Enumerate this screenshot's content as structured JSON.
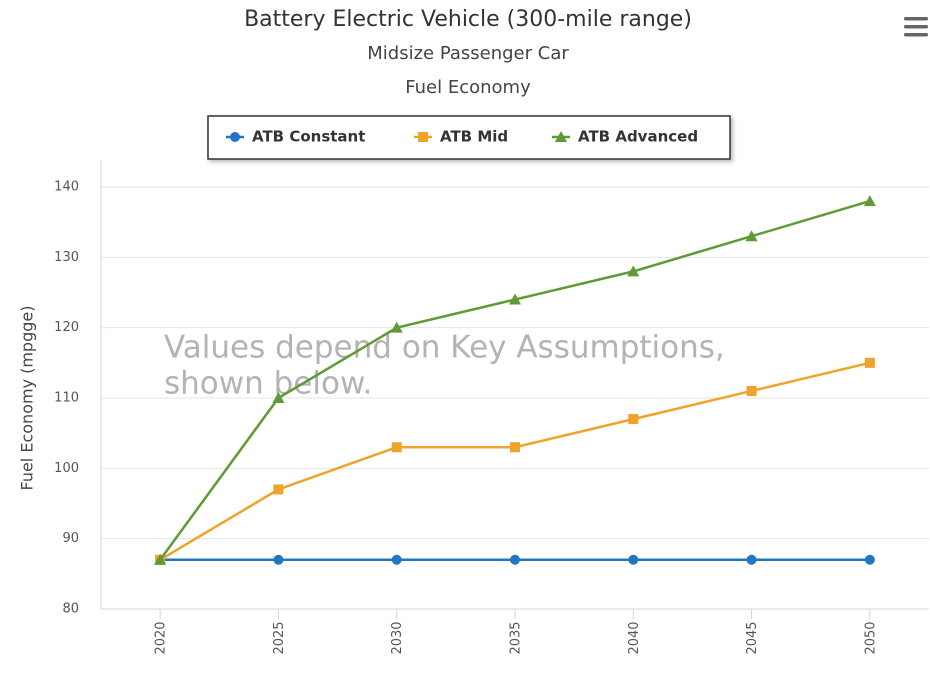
{
  "chart_data": {
    "type": "line",
    "title": "Battery Electric Vehicle (300-mile range)",
    "subtitle": [
      "Midsize Passenger Car",
      "Fuel Economy"
    ],
    "ylabel": "Fuel Economy (mpgge)",
    "annotation": [
      "Values depend on Key Assumptions,",
      "shown below."
    ],
    "categories": [
      "2020",
      "2025",
      "2030",
      "2035",
      "2040",
      "2045",
      "2050"
    ],
    "series": [
      {
        "name": "ATB Constant",
        "color": "#1f77c4",
        "marker": "circle",
        "values": [
          87,
          87,
          87,
          87,
          87,
          87,
          87
        ]
      },
      {
        "name": "ATB Mid",
        "color": "#f0a32a",
        "marker": "square",
        "values": [
          87,
          97,
          103,
          103,
          107,
          111,
          115
        ]
      },
      {
        "name": "ATB Advanced",
        "color": "#5f9a35",
        "marker": "triangle",
        "values": [
          87,
          110,
          120,
          124,
          128,
          133,
          138
        ]
      }
    ],
    "ylim": [
      80,
      140
    ],
    "yticks": [
      80,
      90,
      100,
      110,
      120,
      130,
      140
    ],
    "grid": true,
    "legend": "top"
  }
}
